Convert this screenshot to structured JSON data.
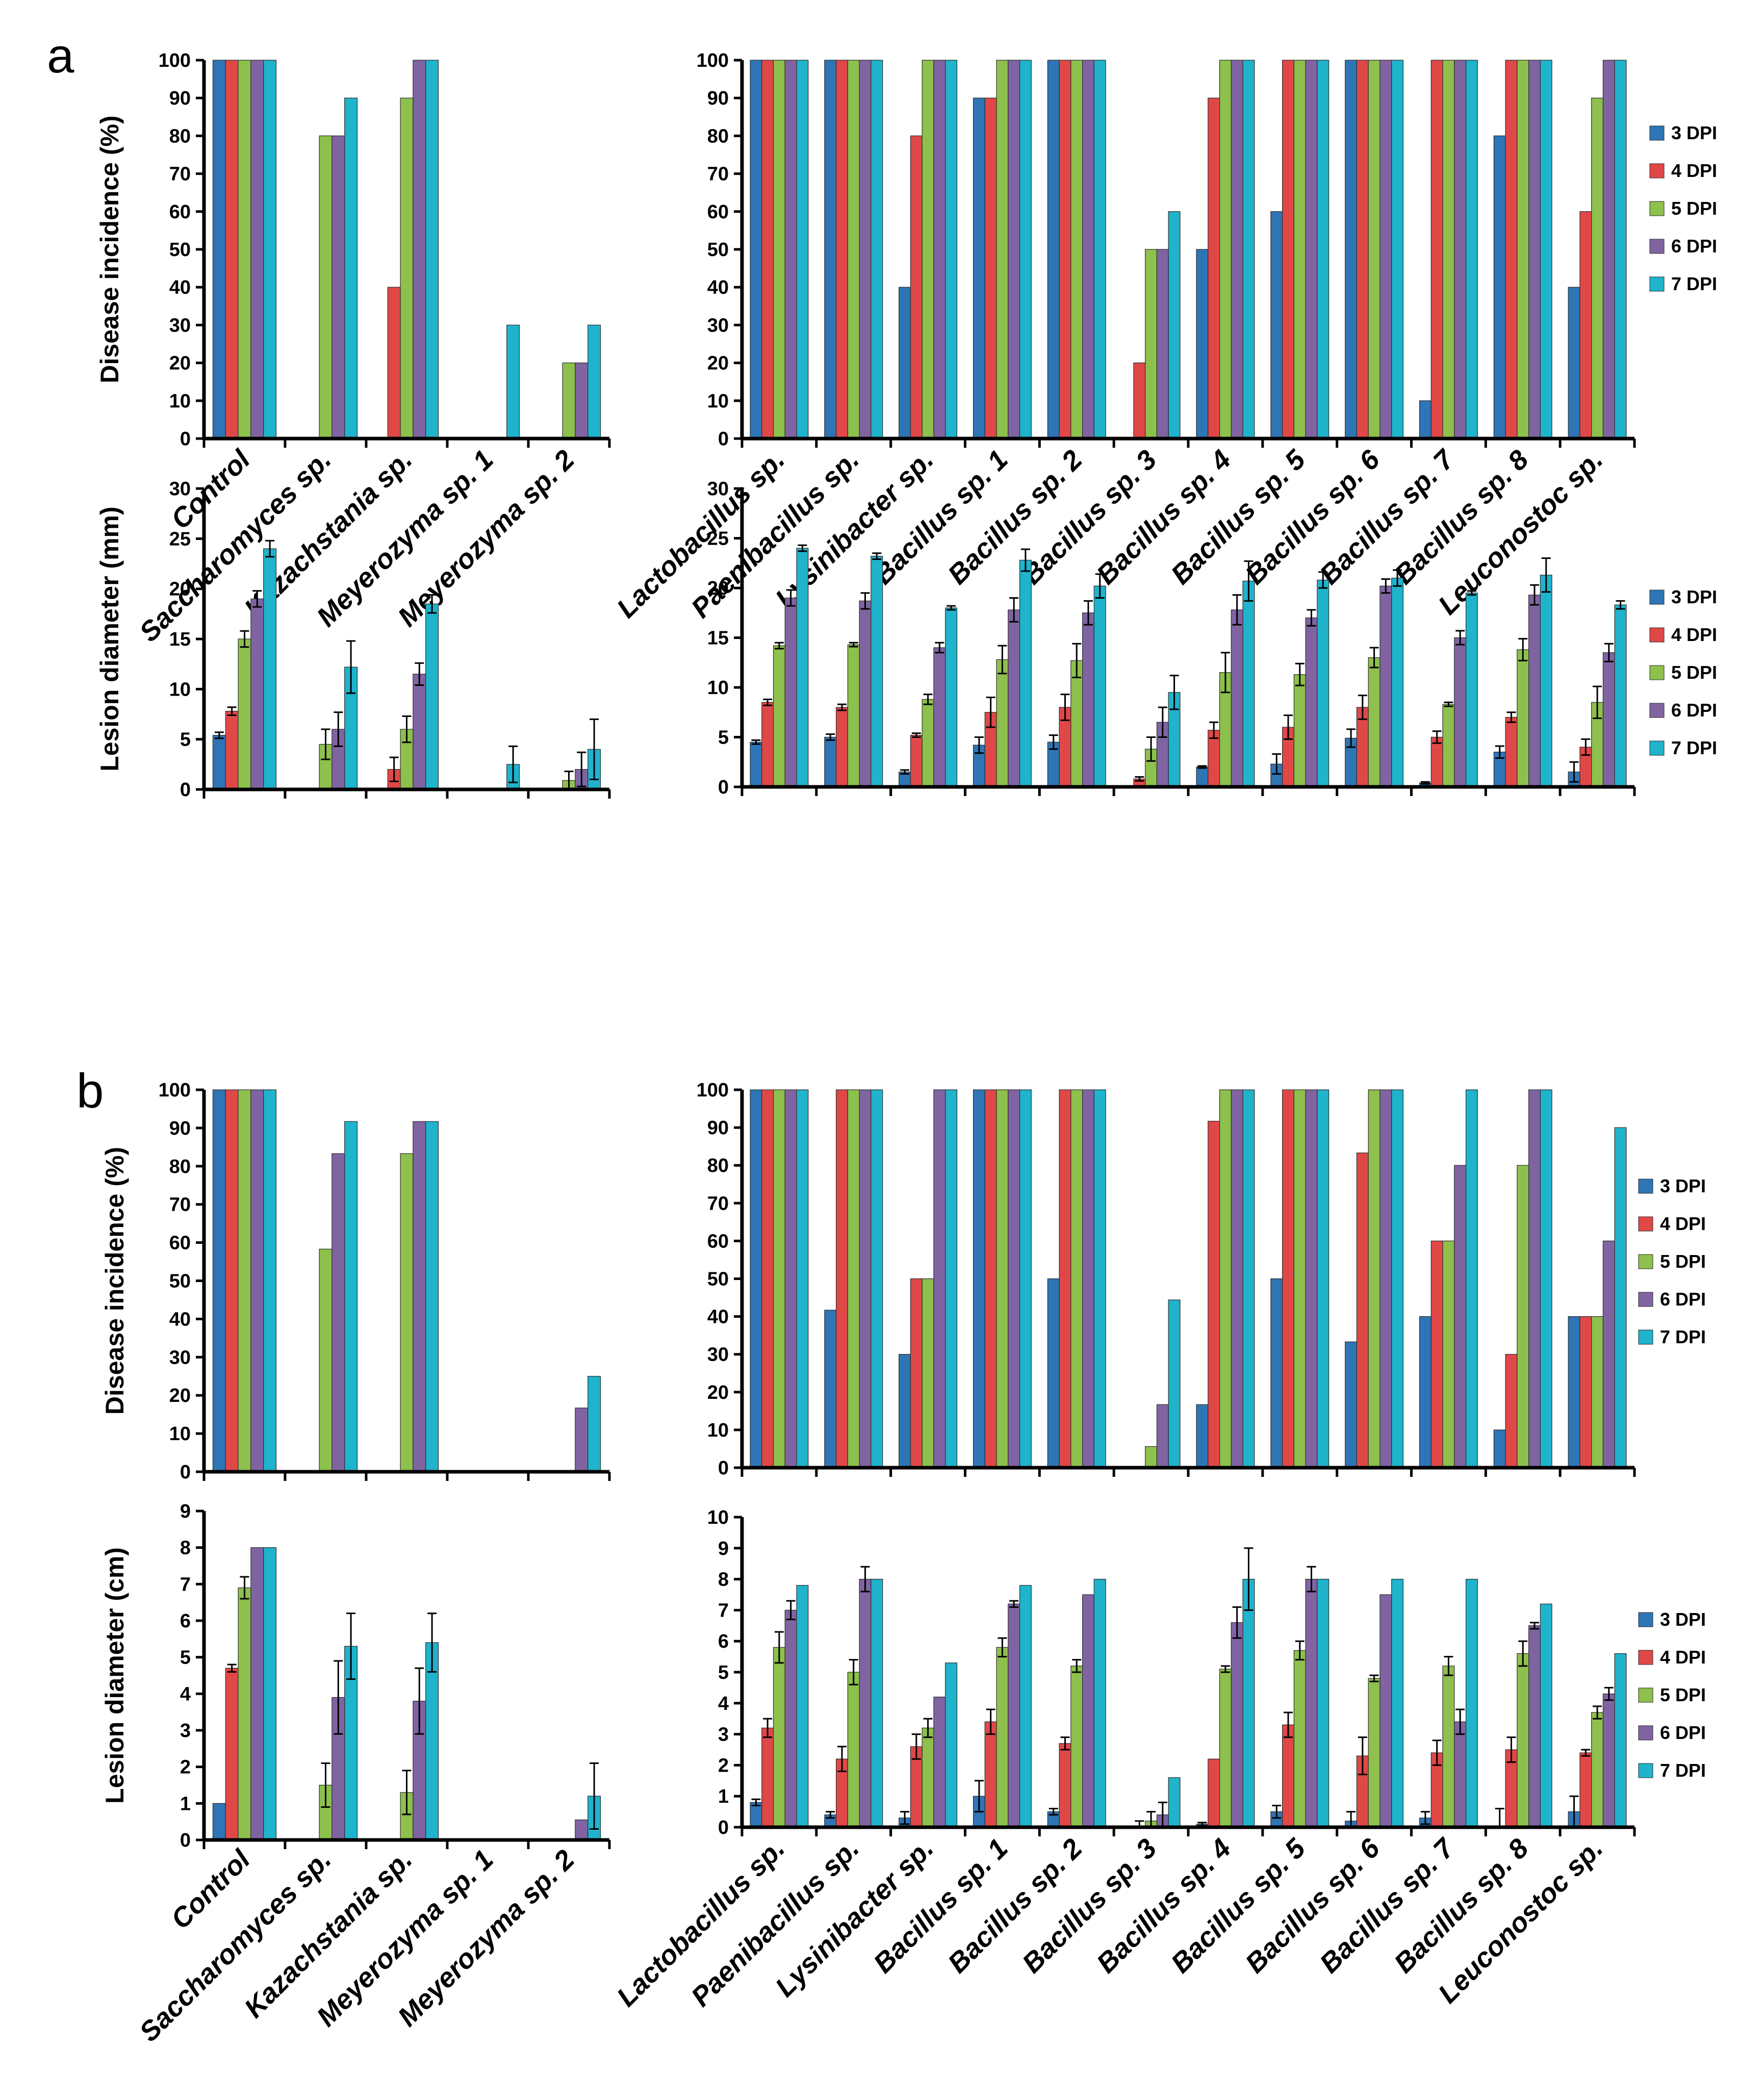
{
  "figure": {
    "panel_labels": [
      "a",
      "b"
    ],
    "series_colors": [
      "#2e75b6",
      "#e04848",
      "#8dc04c",
      "#8064a2",
      "#1fb3cc"
    ],
    "legend": [
      "3 DPI",
      "4 DPI",
      "5 DPI",
      "6 DPI",
      "7 DPI"
    ]
  },
  "chart_data": [
    {
      "panel": "a",
      "type": "bar",
      "ylabel": "Disease incidence (%)",
      "ylim": [
        0,
        100
      ],
      "categories": [
        "Control",
        "Saccharomyces sp.",
        "Kazachstania sp.",
        "Meyerozyma sp. 1",
        "Meyerozyma sp. 2"
      ],
      "series": [
        {
          "name": "3 DPI",
          "values": [
            100,
            0,
            0,
            0,
            0
          ]
        },
        {
          "name": "4 DPI",
          "values": [
            100,
            0,
            40,
            0,
            0
          ]
        },
        {
          "name": "5 DPI",
          "values": [
            100,
            80,
            90,
            0,
            20
          ]
        },
        {
          "name": "6 DPI",
          "values": [
            100,
            80,
            100,
            0,
            20
          ]
        },
        {
          "name": "7 DPI",
          "values": [
            100,
            90,
            100,
            30,
            30
          ]
        }
      ]
    },
    {
      "panel": "a",
      "type": "bar",
      "ylabel": "",
      "ylim": [
        0,
        100
      ],
      "categories": [
        "Lactobacillus sp.",
        "Paenibacillus sp.",
        "Lysinibacter sp.",
        "Bacillus sp. 1",
        "Bacillus sp. 2",
        "Bacillus sp. 3",
        "Bacillus sp. 4",
        "Bacillus sp. 5",
        "Bacillus sp. 6",
        "Bacillus sp. 7",
        "Bacillus sp. 8",
        "Leuconostoc sp."
      ],
      "series": [
        {
          "name": "3 DPI",
          "values": [
            100,
            100,
            40,
            90,
            100,
            0,
            50,
            60,
            100,
            10,
            80,
            40
          ]
        },
        {
          "name": "4 DPI",
          "values": [
            100,
            100,
            80,
            90,
            100,
            20,
            90,
            100,
            100,
            100,
            100,
            60
          ]
        },
        {
          "name": "5 DPI",
          "values": [
            100,
            100,
            100,
            100,
            100,
            50,
            100,
            100,
            100,
            100,
            100,
            90
          ]
        },
        {
          "name": "6 DPI",
          "values": [
            100,
            100,
            100,
            100,
            100,
            50,
            100,
            100,
            100,
            100,
            100,
            100
          ]
        },
        {
          "name": "7 DPI",
          "values": [
            100,
            100,
            100,
            100,
            100,
            60,
            100,
            100,
            100,
            100,
            100,
            100
          ]
        }
      ]
    },
    {
      "panel": "a",
      "type": "bar",
      "ylabel": "Lesion diameter (mm)",
      "ylim": [
        0,
        30
      ],
      "categories": [
        "Control",
        "Saccharomyces sp.",
        "Kazachstania sp.",
        "Meyerozyma sp. 1",
        "Meyerozyma sp. 2"
      ],
      "series": [
        {
          "name": "3 DPI",
          "values": [
            5.4,
            0,
            0,
            0,
            0
          ],
          "errors": [
            0.3,
            0,
            0,
            0,
            0
          ]
        },
        {
          "name": "4 DPI",
          "values": [
            7.8,
            0,
            2.0,
            0,
            0
          ],
          "errors": [
            0.4,
            0,
            1.2,
            0,
            0
          ]
        },
        {
          "name": "5 DPI",
          "values": [
            15.0,
            4.5,
            6.0,
            0,
            0.9
          ],
          "errors": [
            0.8,
            1.5,
            1.3,
            0,
            0.9
          ]
        },
        {
          "name": "6 DPI",
          "values": [
            19.0,
            6.0,
            11.5,
            0,
            2.0
          ],
          "errors": [
            0.8,
            1.7,
            1.1,
            0,
            1.7
          ]
        },
        {
          "name": "7 DPI",
          "values": [
            24.0,
            12.2,
            18.5,
            2.5,
            4.0
          ],
          "errors": [
            0.8,
            2.6,
            0.9,
            1.8,
            3.0
          ]
        }
      ]
    },
    {
      "panel": "a",
      "type": "bar",
      "ylabel": "",
      "ylim": [
        0,
        30
      ],
      "categories": [
        "Lactobacillus sp.",
        "Paenibacillus sp.",
        "Lysinibacter sp.",
        "Bacillus sp. 1",
        "Bacillus sp. 2",
        "Bacillus sp. 3",
        "Bacillus sp. 4",
        "Bacillus sp. 5",
        "Bacillus sp. 6",
        "Bacillus sp. 7",
        "Bacillus sp. 8",
        "Leuconostoc sp."
      ],
      "series": [
        {
          "name": "3 DPI",
          "values": [
            4.5,
            5.0,
            1.5,
            4.2,
            4.5,
            0,
            2.0,
            2.3,
            4.9,
            0.4,
            3.5,
            1.5
          ],
          "errors": [
            0.2,
            0.3,
            0.2,
            0.8,
            0.7,
            0,
            0.1,
            1.0,
            0.9,
            0.1,
            0.6,
            1.0
          ]
        },
        {
          "name": "4 DPI",
          "values": [
            8.5,
            8.0,
            5.2,
            7.5,
            8.0,
            0.8,
            5.7,
            6.0,
            8.0,
            5.0,
            7.0,
            4.0
          ],
          "errors": [
            0.3,
            0.3,
            0.2,
            1.5,
            1.3,
            0.2,
            0.8,
            1.2,
            1.2,
            0.6,
            0.5,
            0.8
          ]
        },
        {
          "name": "5 DPI",
          "values": [
            14.2,
            14.3,
            8.8,
            12.8,
            12.7,
            3.8,
            11.5,
            11.3,
            13.0,
            8.3,
            13.8,
            8.5
          ],
          "errors": [
            0.3,
            0.2,
            0.5,
            1.4,
            1.7,
            1.2,
            2.0,
            1.1,
            1.0,
            0.2,
            1.1,
            1.6
          ]
        },
        {
          "name": "6 DPI",
          "values": [
            19.0,
            18.7,
            14.0,
            17.8,
            17.5,
            6.5,
            17.8,
            17.0,
            20.2,
            15.0,
            19.3,
            13.5
          ],
          "errors": [
            0.8,
            0.8,
            0.5,
            1.2,
            1.2,
            1.5,
            1.5,
            0.8,
            0.7,
            0.7,
            1.0,
            0.9
          ]
        },
        {
          "name": "7 DPI",
          "values": [
            24.0,
            23.2,
            18.0,
            22.8,
            20.2,
            9.5,
            20.7,
            20.8,
            21.0,
            19.5,
            21.3,
            18.3
          ],
          "errors": [
            0.3,
            0.3,
            0.2,
            1.1,
            1.2,
            1.7,
            2.0,
            0.8,
            0.8,
            0.2,
            1.7,
            0.4
          ]
        }
      ]
    },
    {
      "panel": "b",
      "type": "bar",
      "ylabel": "Disease incidence (%)",
      "ylim": [
        0,
        100
      ],
      "categories": [
        "Control",
        "Saccharomyces sp.",
        "Kazachstania sp.",
        "Meyerozyma sp. 1",
        "Meyerozyma sp. 2"
      ],
      "series": [
        {
          "name": "3 DPI",
          "values": [
            100,
            0,
            0,
            0,
            0
          ]
        },
        {
          "name": "4 DPI",
          "values": [
            100,
            0,
            0,
            0,
            0
          ]
        },
        {
          "name": "5 DPI",
          "values": [
            100,
            58.3,
            83.3,
            0,
            0
          ]
        },
        {
          "name": "6 DPI",
          "values": [
            100,
            83.3,
            91.7,
            0,
            16.7
          ]
        },
        {
          "name": "7 DPI",
          "values": [
            100,
            91.7,
            91.7,
            0,
            25
          ]
        }
      ]
    },
    {
      "panel": "b",
      "type": "bar",
      "ylabel": "",
      "ylim": [
        0,
        100
      ],
      "categories": [
        "Lactobacillus sp.",
        "Paenibacillus sp.",
        "Lysinibacter sp.",
        "Bacillus sp. 1",
        "Bacillus sp. 2",
        "Bacillus sp. 3",
        "Bacillus sp. 4",
        "Bacillus sp. 5",
        "Bacillus sp. 6",
        "Bacillus sp. 7",
        "Bacillus sp. 8",
        "Leuconostoc sp."
      ],
      "series": [
        {
          "name": "3 DPI",
          "values": [
            100,
            41.7,
            30,
            100,
            50,
            0,
            16.7,
            50,
            33.3,
            40,
            10,
            40
          ]
        },
        {
          "name": "4 DPI",
          "values": [
            100,
            100,
            50,
            100,
            100,
            0,
            91.7,
            100,
            83.3,
            60,
            30,
            40
          ]
        },
        {
          "name": "5 DPI",
          "values": [
            100,
            100,
            50,
            100,
            100,
            5.6,
            100,
            100,
            100,
            60,
            80,
            40
          ]
        },
        {
          "name": "6 DPI",
          "values": [
            100,
            100,
            100,
            100,
            100,
            16.7,
            100,
            100,
            100,
            80,
            100,
            60
          ]
        },
        {
          "name": "7 DPI",
          "values": [
            100,
            100,
            100,
            100,
            100,
            44.4,
            100,
            100,
            100,
            100,
            100,
            90
          ]
        }
      ]
    },
    {
      "panel": "b",
      "type": "bar",
      "ylabel": "Lesion diameter (cm)",
      "ylim": [
        0,
        9
      ],
      "categories": [
        "Control",
        "Saccharomyces sp.",
        "Kazachstania sp.",
        "Meyerozyma sp. 1",
        "Meyerozyma sp. 2"
      ],
      "series": [
        {
          "name": "3 DPI",
          "values": [
            1.0,
            0,
            0,
            0,
            0
          ],
          "errors": [
            0,
            0,
            0,
            0,
            0
          ]
        },
        {
          "name": "4 DPI",
          "values": [
            4.7,
            0,
            0,
            0,
            0
          ],
          "errors": [
            0.1,
            0,
            0,
            0,
            0
          ]
        },
        {
          "name": "5 DPI",
          "values": [
            6.9,
            1.5,
            1.3,
            0,
            0
          ],
          "errors": [
            0.3,
            0.6,
            0.6,
            0,
            0
          ]
        },
        {
          "name": "6 DPI",
          "values": [
            8.0,
            3.9,
            3.8,
            0,
            0.55
          ],
          "errors": [
            0,
            1.0,
            0.9,
            0,
            0
          ]
        },
        {
          "name": "7 DPI",
          "values": [
            8.0,
            5.3,
            5.4,
            0,
            1.2
          ],
          "errors": [
            0,
            0.9,
            0.8,
            0,
            0.9
          ]
        }
      ]
    },
    {
      "panel": "b",
      "type": "bar",
      "ylabel": "",
      "ylim": [
        0,
        10
      ],
      "categories": [
        "Lactobacillus sp.",
        "Paenibacillus sp.",
        "Lysinibacter sp.",
        "Bacillus sp. 1",
        "Bacillus sp. 2",
        "Bacillus sp. 3",
        "Bacillus sp. 4",
        "Bacillus sp. 5",
        "Bacillus sp. 6",
        "Bacillus sp. 7",
        "Bacillus sp. 8",
        "Leuconostoc sp."
      ],
      "series": [
        {
          "name": "3 DPI",
          "values": [
            0.8,
            0.4,
            0.3,
            1.0,
            0.5,
            0,
            0.1,
            0.5,
            0.2,
            0.3,
            0,
            0.5
          ],
          "errors": [
            0.1,
            0.1,
            0.2,
            0.5,
            0.1,
            0,
            0.05,
            0.2,
            0.3,
            0.2,
            0.6,
            0.5
          ]
        },
        {
          "name": "4 DPI",
          "values": [
            3.2,
            2.2,
            2.6,
            3.4,
            2.7,
            0,
            2.2,
            3.3,
            2.3,
            2.4,
            2.5,
            2.4
          ],
          "errors": [
            0.3,
            0.4,
            0.4,
            0.4,
            0.2,
            0.2,
            0,
            0.4,
            0.6,
            0.4,
            0.4,
            0.1
          ]
        },
        {
          "name": "5 DPI",
          "values": [
            5.8,
            5.0,
            3.2,
            5.8,
            5.2,
            0.2,
            5.1,
            5.7,
            4.8,
            5.2,
            5.6,
            3.7
          ],
          "errors": [
            0.5,
            0.4,
            0.3,
            0.3,
            0.2,
            0.3,
            0.1,
            0.3,
            0.1,
            0.3,
            0.4,
            0.2
          ]
        },
        {
          "name": "6 DPI",
          "values": [
            7.0,
            8.0,
            4.2,
            7.2,
            7.5,
            0.4,
            6.6,
            8.0,
            7.5,
            3.4,
            6.5,
            4.3
          ],
          "errors": [
            0.3,
            0.4,
            0,
            0.1,
            0,
            0.4,
            0.5,
            0.4,
            0,
            0.4,
            0.1,
            0.2
          ]
        },
        {
          "name": "7 DPI",
          "values": [
            7.8,
            8.0,
            5.3,
            7.8,
            8.0,
            1.6,
            8.0,
            8.0,
            8.0,
            8.0,
            7.2,
            5.6
          ],
          "errors": [
            0,
            0,
            0,
            0,
            0,
            0,
            1.0,
            0,
            0,
            0,
            0,
            0
          ]
        }
      ]
    }
  ]
}
